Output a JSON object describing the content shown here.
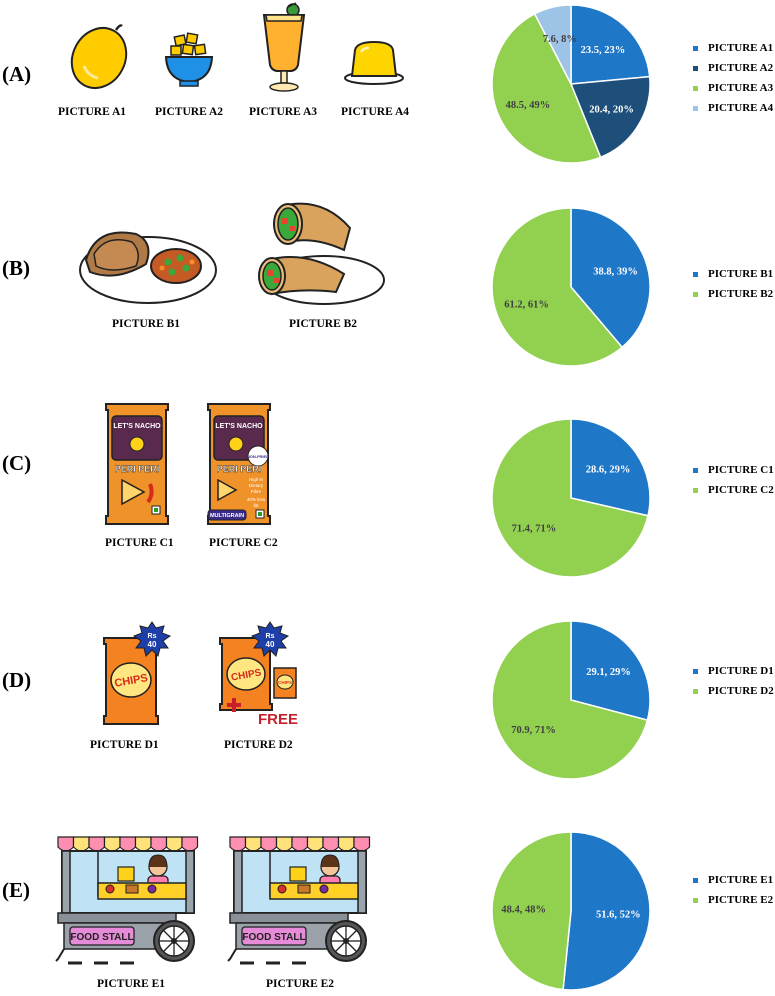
{
  "colors": {
    "blue": "#1f77c8",
    "darkblue": "#1e4e7a",
    "green": "#92d050",
    "lightblue": "#9dc3e6"
  },
  "rows": [
    {
      "label": "(A)",
      "pictures": [
        {
          "caption": "PICTURE A1",
          "icon": "mango-icon"
        },
        {
          "caption": "PICTURE A2",
          "icon": "mango-bowl-icon"
        },
        {
          "caption": "PICTURE A3",
          "icon": "mango-shake-icon"
        },
        {
          "caption": "PICTURE A4",
          "icon": "mango-pudding-icon"
        }
      ]
    },
    {
      "label": "(B)",
      "pictures": [
        {
          "caption": "PICTURE B1",
          "icon": "roti-sabzi-icon"
        },
        {
          "caption": "PICTURE B2",
          "icon": "wrap-icon"
        }
      ]
    },
    {
      "label": "(C)",
      "pictures": [
        {
          "caption": "PICTURE C1",
          "icon": "nacho-pack-icon",
          "brand": "LET'S NACHO",
          "flavor": "PERI PERI"
        },
        {
          "caption": "PICTURE C2",
          "icon": "nacho-pack-multigrain-icon",
          "brand": "LET'S NACHO",
          "flavor": "PERI PERI",
          "badge": "NON-FRIED",
          "claims": [
            "High in",
            "Dietary",
            "Fibre",
            "40% less",
            "fat"
          ],
          "tag": "MULTIGRAIN"
        }
      ]
    },
    {
      "label": "(D)",
      "pictures": [
        {
          "caption": "PICTURE D1",
          "icon": "chips-pack-icon",
          "price": [
            "Rs",
            "40"
          ],
          "product": "CHIPS"
        },
        {
          "caption": "PICTURE D2",
          "icon": "chips-pack-free-icon",
          "price": [
            "Rs",
            "40"
          ],
          "product": "CHIPS",
          "small_product": "CHIPS",
          "free": "FREE"
        }
      ]
    },
    {
      "label": "(E)",
      "pictures": [
        {
          "caption": "PICTURE E1",
          "icon": "food-stall-icon",
          "sign": "FOOD STALL"
        },
        {
          "caption": "PICTURE E2",
          "icon": "food-stall-icon",
          "sign": "FOOD STALL"
        }
      ]
    }
  ],
  "chart_data": [
    {
      "type": "pie",
      "categories": [
        "PICTURE A1",
        "PICTURE A2",
        "PICTURE A3",
        "PICTURE A4"
      ],
      "values": [
        23.5,
        20.4,
        48.5,
        7.6
      ],
      "labels": [
        "23.5, 23%",
        "20.4, 20%",
        "48.5, 49%",
        "7.6, 8%"
      ],
      "colors": [
        "#1f77c8",
        "#1e4e7a",
        "#92d050",
        "#9dc3e6"
      ],
      "legend": "right"
    },
    {
      "type": "pie",
      "categories": [
        "PICTURE B1",
        "PICTURE B2"
      ],
      "values": [
        38.8,
        61.2
      ],
      "labels": [
        "38.8, 39%",
        "61.2, 61%"
      ],
      "colors": [
        "#1f77c8",
        "#92d050"
      ],
      "legend": "right"
    },
    {
      "type": "pie",
      "categories": [
        "PICTURE C1",
        "PICTURE C2"
      ],
      "values": [
        28.6,
        71.4
      ],
      "labels": [
        "28.6, 29%",
        "71.4, 71%"
      ],
      "colors": [
        "#1f77c8",
        "#92d050"
      ],
      "legend": "right"
    },
    {
      "type": "pie",
      "categories": [
        "PICTURE D1",
        "PICTURE D2"
      ],
      "values": [
        29.1,
        70.9
      ],
      "labels": [
        "29.1, 29%",
        "70.9, 71%"
      ],
      "colors": [
        "#1f77c8",
        "#92d050"
      ],
      "legend": "right"
    },
    {
      "type": "pie",
      "categories": [
        "PICTURE E1",
        "PICTURE E2"
      ],
      "values": [
        51.6,
        48.4
      ],
      "labels": [
        "51.6, 52%",
        "48.4, 48%"
      ],
      "colors": [
        "#1f77c8",
        "#92d050"
      ],
      "legend": "right"
    }
  ]
}
